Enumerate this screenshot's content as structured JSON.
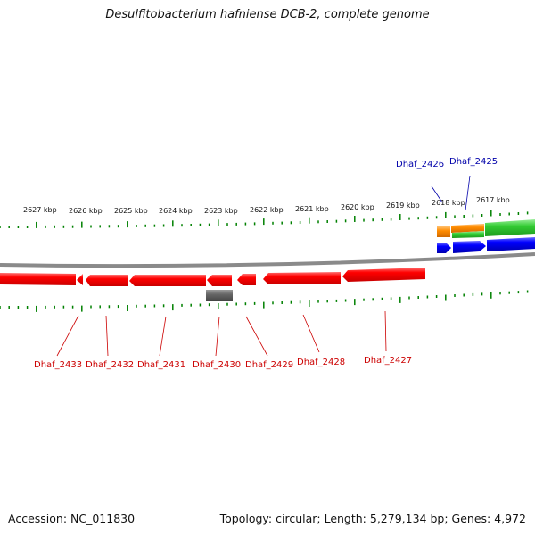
{
  "title": "Desulfitobacterium hafniense DCB-2, complete genome",
  "footer": {
    "accession": "Accession: NC_011830",
    "summary": "Topology: circular; Length: 5,279,134 bp; Genes: 4,972"
  },
  "colors": {
    "minus_strand_gene": "#ff0000",
    "plus_strand_gene": "#0000ff",
    "rna_gene": "#ff8c00",
    "feature_green": "#33cc33",
    "gray_feature": "#666666",
    "backbone": "#888888",
    "tick": "#008000",
    "label_red": "#cc0000",
    "label_blue": "#0000aa"
  },
  "scale_labels": [
    "2627 kbp",
    "2626 kbp",
    "2625 kbp",
    "2624 kbp",
    "2623 kbp",
    "2622 kbp",
    "2621 kbp",
    "2620 kbp",
    "2619 kbp",
    "2618 kbp",
    "2617 kbp"
  ],
  "gene_labels": {
    "minus": [
      "Dhaf_2433",
      "Dhaf_2432",
      "Dhaf_2431",
      "Dhaf_2430",
      "Dhaf_2429",
      "Dhaf_2428",
      "Dhaf_2427"
    ],
    "plus": [
      "Dhaf_2426",
      "Dhaf_2425"
    ]
  }
}
